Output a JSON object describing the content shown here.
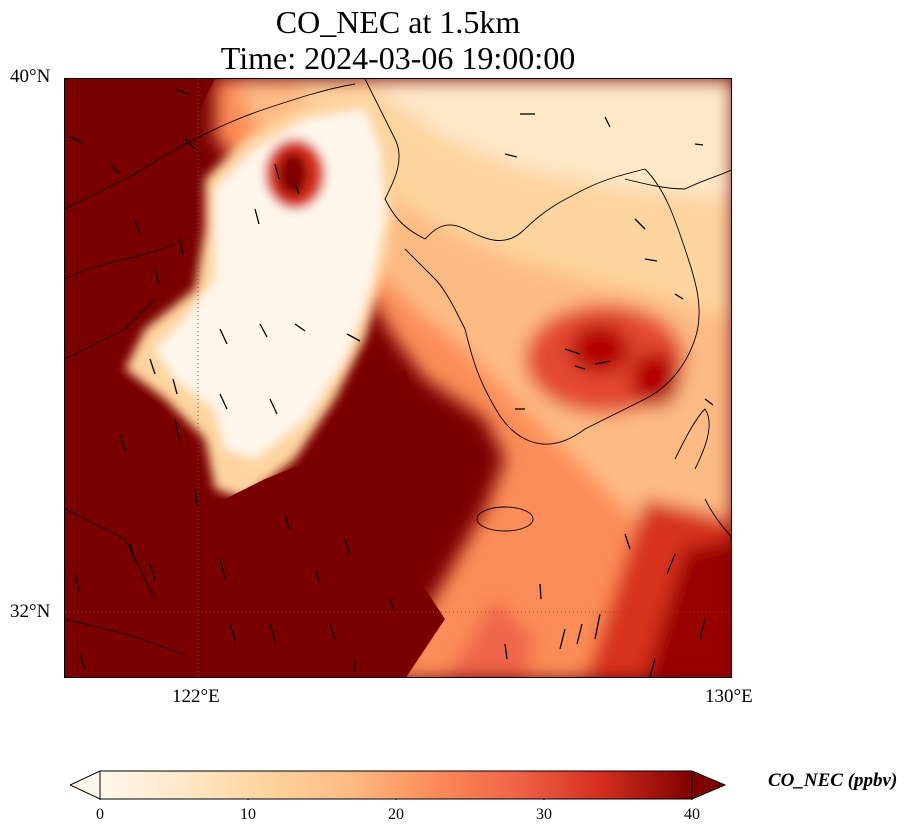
{
  "title": {
    "line1": "CO_NEC at 1.5km",
    "line2": "Time: 2024-03-06 19:00:00"
  },
  "map": {
    "variable": "CO_NEC",
    "level": "1.5km",
    "projection": "plate-carree",
    "extent": {
      "lon_min": 120,
      "lon_max": 130,
      "lat_min": 31,
      "lat_max": 40
    },
    "lat_ticks": [
      {
        "value": 40,
        "label": "40°N"
      },
      {
        "value": 32,
        "label": "32°N"
      }
    ],
    "lon_ticks": [
      {
        "value": 122,
        "label": "122°E"
      },
      {
        "value": 130,
        "label": "130°E"
      }
    ],
    "gridlines": "dotted at 122°E and 32°N",
    "overlays": [
      "coastlines",
      "country-borders",
      "wind-vectors"
    ],
    "colormap": "OrRd",
    "colors": {
      "low": "#fff7ec",
      "mid": "#fdbb84",
      "high": "#d7301f",
      "max": "#7f0000"
    }
  },
  "colorbar": {
    "label": "CO_NEC (ppbv)",
    "min": 0,
    "max": 40,
    "ticks": [
      "0",
      "10",
      "20",
      "30",
      "40"
    ],
    "extend": "both"
  }
}
